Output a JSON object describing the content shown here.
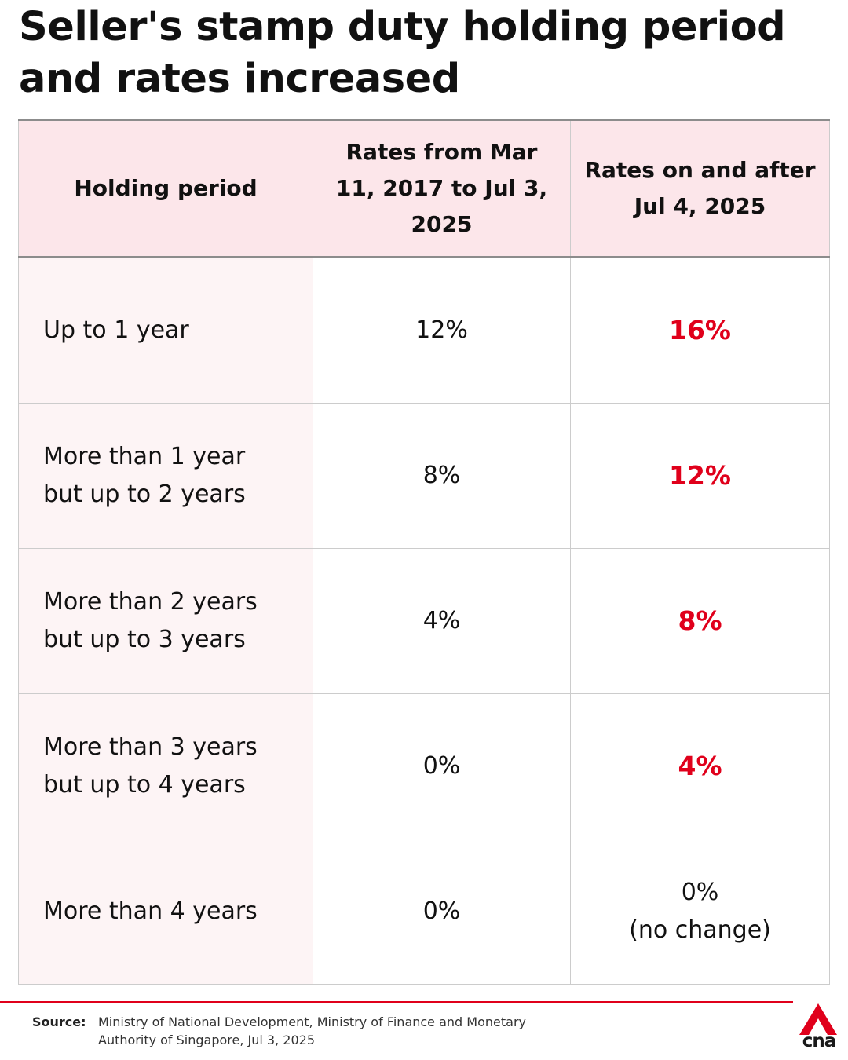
{
  "title": "Seller's stamp duty holding period and rates increased",
  "table": {
    "headers": [
      "Holding period",
      "Rates from Mar 11, 2017 to Jul 3, 2025",
      "Rates on and after Jul 4, 2025"
    ],
    "rows": [
      {
        "period": [
          "Up to 1 year"
        ],
        "old_rate": "12%",
        "new_rate": [
          "16%"
        ]
      },
      {
        "period": [
          "More than 1 year",
          "but up to 2 years"
        ],
        "old_rate": "8%",
        "new_rate": [
          "12%"
        ]
      },
      {
        "period": [
          "More than 2 years",
          "but up to 3 years"
        ],
        "old_rate": "4%",
        "new_rate": [
          "8%"
        ]
      },
      {
        "period": [
          "More than 3 years",
          "but up to 4 years"
        ],
        "old_rate": "0%",
        "new_rate": [
          "4%"
        ]
      },
      {
        "period": [
          "More than 4 years"
        ],
        "old_rate": "0%",
        "new_rate": [
          "0%",
          "(no change)"
        ]
      }
    ]
  },
  "source": {
    "label": "Source:",
    "text": "Ministry of National Development, Ministry of Finance and Monetary Authority of Singapore, Jul 3, 2025"
  },
  "logo": {
    "text": "cna",
    "icon": "cna-logo-icon"
  },
  "colors": {
    "header_background": "#fce6ea",
    "period_background": "#fdf4f5",
    "increase_highlight": "#e0001b",
    "accent_rule": "#e0001b"
  }
}
